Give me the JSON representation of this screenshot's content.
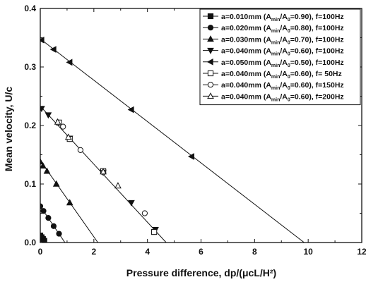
{
  "chart_data": {
    "type": "line",
    "xlabel": "Pressure difference, dp/(μcL/H²)",
    "ylabel": "Mean velocity, U/c",
    "xlim": [
      0,
      12
    ],
    "ylim": [
      0,
      0.4
    ],
    "xticks": [
      "0",
      "2",
      "4",
      "6",
      "8",
      "10",
      "12"
    ],
    "yticks": [
      "0.0",
      "0.1",
      "0.2",
      "0.3",
      "0.4"
    ],
    "grid": false,
    "legend_position": "top-right",
    "series": [
      {
        "name": "a=0.010mm (Amin/A0=0.90), f=100Hz",
        "legend": {
          "a": "a=0.010mm (A",
          "sub1": "min",
          "mid": "/A",
          "sub2": "0",
          "end": "=0.90), f=100Hz"
        },
        "marker": "square-filled",
        "line": {
          "x": [
            0,
            0.2
          ],
          "y": [
            0.012,
            0
          ]
        },
        "points": [
          [
            0.0,
            0.012
          ],
          [
            0.05,
            0.009
          ],
          [
            0.1,
            0.006
          ],
          [
            0.15,
            0.003
          ]
        ]
      },
      {
        "name": "a=0.020mm (Amin/A0=0.80), f=100Hz",
        "legend": {
          "a": "a=0.020mm (A",
          "sub1": "min",
          "mid": "/A",
          "sub2": "0",
          "end": "=0.80), f=100Hz"
        },
        "marker": "circle-filled",
        "line": {
          "x": [
            0,
            0.92
          ],
          "y": [
            0.062,
            0
          ]
        },
        "points": [
          [
            0.0,
            0.062
          ],
          [
            0.12,
            0.054
          ],
          [
            0.3,
            0.042
          ],
          [
            0.5,
            0.028
          ],
          [
            0.7,
            0.015
          ]
        ]
      },
      {
        "name": "a=0.030mm (Amin/A0=0.70), f=100Hz",
        "legend": {
          "a": "a=0.030mm (A",
          "sub1": "min",
          "mid": "/A",
          "sub2": "0",
          "end": "=0.70), f=100Hz"
        },
        "marker": "triangle-up-filled",
        "line": {
          "x": [
            0,
            2.15
          ],
          "y": [
            0.14,
            0
          ]
        },
        "points": [
          [
            0.0,
            0.138
          ],
          [
            0.1,
            0.131
          ],
          [
            0.25,
            0.122
          ],
          [
            0.6,
            0.1
          ],
          [
            1.1,
            0.068
          ]
        ]
      },
      {
        "name": "a=0.040mm (Amin/A0=0.60), f=100Hz",
        "legend": {
          "a": "a=0.040mm (A",
          "sub1": "min",
          "mid": "/A",
          "sub2": "0",
          "end": "=0.60), f=100Hz"
        },
        "marker": "triangle-down-filled",
        "line": {
          "x": [
            0,
            4.7
          ],
          "y": [
            0.233,
            0
          ]
        },
        "points": [
          [
            0.05,
            0.229
          ],
          [
            0.3,
            0.218
          ],
          [
            1.1,
            0.178
          ],
          [
            2.35,
            0.12
          ],
          [
            3.4,
            0.068
          ],
          [
            4.3,
            0.022
          ]
        ]
      },
      {
        "name": "a=0.050mm (Amin/A0=0.50), f=100Hz",
        "legend": {
          "a": "a=0.050mm (A",
          "sub1": "min",
          "mid": "/A",
          "sub2": "0",
          "end": "=0.50), f=100Hz"
        },
        "marker": "triangle-left-filled",
        "line": {
          "x": [
            0,
            9.85
          ],
          "y": [
            0.348,
            0
          ]
        },
        "points": [
          [
            0.05,
            0.346
          ],
          [
            0.5,
            0.33
          ],
          [
            1.1,
            0.308
          ],
          [
            3.4,
            0.227
          ],
          [
            5.65,
            0.147
          ]
        ]
      },
      {
        "name": "a=0.040mm (Amin/A0=0.60), f= 50Hz",
        "legend": {
          "a": "a=0.040mm (A",
          "sub1": "min",
          "mid": "/A",
          "sub2": "0",
          "end": "=0.60), f=  50Hz"
        },
        "marker": "square-open",
        "line": null,
        "points": [
          [
            0.7,
            0.205
          ],
          [
            1.1,
            0.177
          ],
          [
            2.35,
            0.122
          ],
          [
            4.25,
            0.018
          ]
        ]
      },
      {
        "name": "a=0.040mm (Amin/A0=0.60), f=150Hz",
        "legend": {
          "a": "a=0.040mm (A",
          "sub1": "min",
          "mid": "/A",
          "sub2": "0",
          "end": "=0.60), f=150Hz"
        },
        "marker": "circle-open",
        "line": null,
        "points": [
          [
            0.85,
            0.198
          ],
          [
            1.5,
            0.158
          ],
          [
            2.35,
            0.12
          ],
          [
            3.9,
            0.05
          ]
        ]
      },
      {
        "name": "a=0.040mm (Amin/A0=0.60), f=200Hz",
        "legend": {
          "a": "a=0.040mm (A",
          "sub1": "min",
          "mid": "/A",
          "sub2": "0",
          "end": "=0.60), f=200Hz"
        },
        "marker": "triangle-up-open",
        "line": null,
        "points": [
          [
            0.65,
            0.206
          ],
          [
            1.05,
            0.18
          ],
          [
            2.35,
            0.121
          ],
          [
            2.9,
            0.097
          ]
        ]
      }
    ]
  }
}
